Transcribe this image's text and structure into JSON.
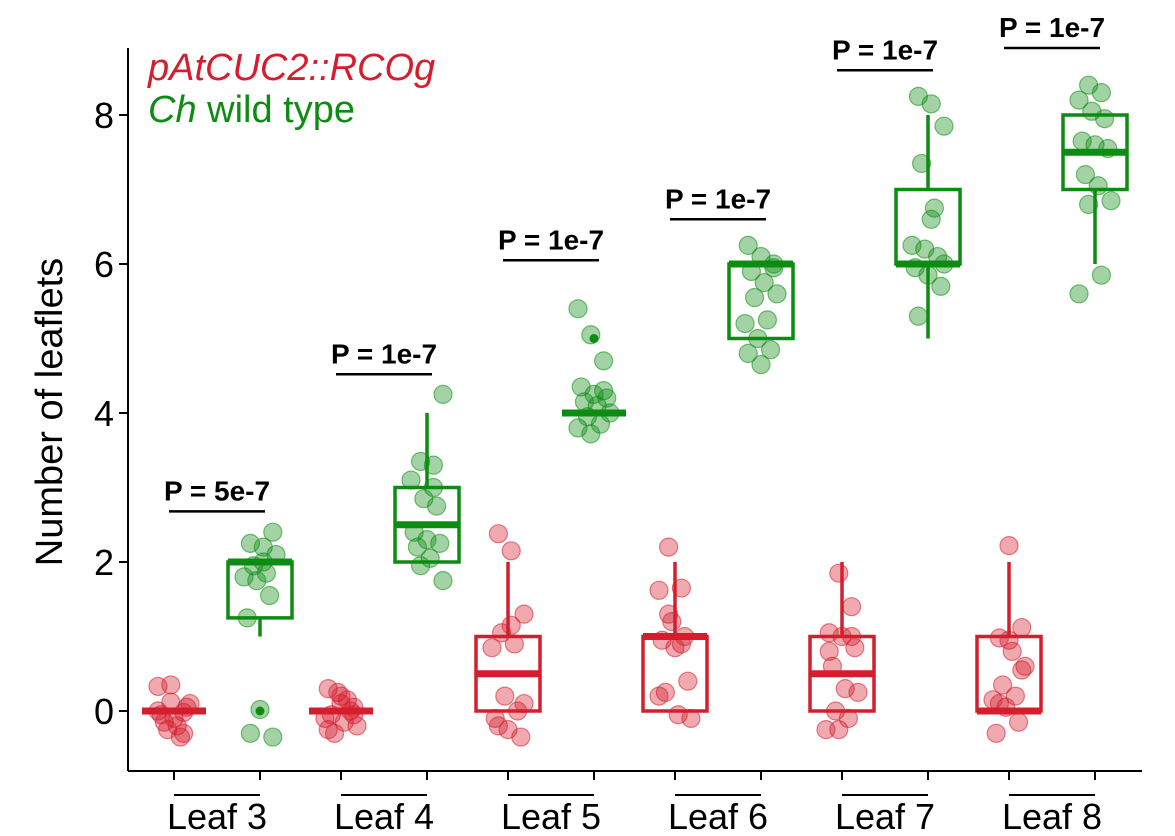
{
  "chart_data": {
    "type": "box",
    "ylabel": "Number of leaflets",
    "xlabel": "",
    "ylim": [
      -0.8,
      8.8
    ],
    "yticks": [
      0,
      2,
      4,
      6,
      8
    ],
    "grid": false,
    "legend_placement": "top-left",
    "legend": [
      {
        "key": "rco",
        "name": "pAtCUC2::RCOg",
        "italic_name": "pAtCUC2::RCOg",
        "plain_name": "",
        "color": "#d41e2d"
      },
      {
        "key": "wt",
        "name": "Ch wild type",
        "italic_name": "Ch",
        "plain_name": " wild type",
        "color": "#0d8c12"
      }
    ],
    "categories": [
      "Leaf 3",
      "Leaf 4",
      "Leaf 5",
      "Leaf 6",
      "Leaf 7",
      "Leaf 8"
    ],
    "series": [
      {
        "key": "rco",
        "color": "#d41e2d",
        "boxes": [
          {
            "min": 0,
            "q1": 0,
            "median": 0,
            "q3": 0,
            "max": 0,
            "outliers": []
          },
          {
            "min": 0,
            "q1": 0,
            "median": 0,
            "q3": 0,
            "max": 0,
            "outliers": []
          },
          {
            "min": 0,
            "q1": 0,
            "median": 0.5,
            "q3": 1,
            "max": 2,
            "outliers": []
          },
          {
            "min": 0,
            "q1": 0,
            "median": 1,
            "q3": 1,
            "max": 2,
            "outliers": []
          },
          {
            "min": 0,
            "q1": 0,
            "median": 0.5,
            "q3": 1,
            "max": 2,
            "outliers": []
          },
          {
            "min": 0,
            "q1": 0,
            "median": 0,
            "q3": 1,
            "max": 2,
            "outliers": []
          }
        ],
        "points": [
          [
            0.33,
            0.35,
            -0.02,
            -0.05,
            -0.1,
            0.05,
            -0.15,
            -0.2,
            0.1,
            -0.25,
            -0.35,
            0.0,
            0.12,
            -0.3
          ],
          [
            0.3,
            0.2,
            0.05,
            -0.05,
            -0.15,
            -0.2,
            -0.3,
            0.15,
            -0.1,
            0.25,
            0.0,
            -0.25,
            0.1,
            -0.05
          ],
          [
            2.38,
            2.15,
            1.3,
            1.05,
            0.9,
            0.85,
            0.2,
            0.0,
            -0.1,
            -0.25,
            -0.35,
            -0.2,
            1.15,
            0.1
          ],
          [
            2.2,
            1.65,
            1.62,
            1.2,
            1.0,
            0.95,
            0.85,
            0.4,
            0.25,
            -0.05,
            -0.1,
            1.3,
            0.9,
            0.2
          ],
          [
            1.85,
            1.4,
            1.05,
            1.0,
            0.85,
            0.6,
            0.3,
            0.25,
            0.0,
            -0.1,
            -0.25,
            -0.25,
            1.0,
            0.8
          ],
          [
            2.22,
            1.12,
            0.98,
            0.8,
            0.6,
            0.35,
            0.2,
            0.15,
            0.05,
            -0.15,
            -0.3,
            0.95,
            0.55,
            0.1
          ]
        ]
      },
      {
        "key": "wt",
        "color": "#0d8c12",
        "boxes": [
          {
            "min": 1.0,
            "q1": 1.25,
            "median": 2,
            "q3": 2,
            "max": 2,
            "outliers": [
              0
            ]
          },
          {
            "min": 2,
            "q1": 2,
            "median": 2.5,
            "q3": 3,
            "max": 4,
            "outliers": []
          },
          {
            "min": 4,
            "q1": 4,
            "median": 4,
            "q3": 4,
            "max": 4,
            "outliers": [
              5
            ]
          },
          {
            "min": 5,
            "q1": 5,
            "median": 6,
            "q3": 6,
            "max": 6,
            "outliers": []
          },
          {
            "min": 5,
            "q1": 6,
            "median": 6,
            "q3": 7,
            "max": 8,
            "outliers": []
          },
          {
            "min": 6,
            "q1": 7,
            "median": 7.5,
            "q3": 8,
            "max": 8,
            "outliers": []
          }
        ],
        "points": [
          [
            2.4,
            2.25,
            2.2,
            2.1,
            1.95,
            1.85,
            1.8,
            1.75,
            1.55,
            1.25,
            0.02,
            -0.35,
            -0.3,
            2.0
          ],
          [
            4.25,
            3.35,
            3.3,
            3.1,
            2.85,
            2.75,
            2.4,
            2.3,
            2.25,
            2.2,
            2.05,
            1.75,
            1.95,
            3.0
          ],
          [
            5.4,
            5.05,
            4.7,
            4.35,
            4.25,
            4.2,
            4.15,
            4.1,
            4.0,
            3.95,
            3.85,
            3.8,
            3.72,
            4.3
          ],
          [
            6.25,
            6.1,
            6.0,
            5.9,
            5.75,
            5.6,
            5.55,
            5.25,
            5.2,
            5.0,
            4.85,
            4.8,
            4.65,
            5.95
          ],
          [
            8.25,
            8.15,
            7.85,
            7.35,
            6.75,
            6.25,
            6.2,
            6.1,
            5.95,
            5.85,
            5.7,
            5.3,
            6.6,
            6.0
          ],
          [
            8.4,
            8.3,
            8.2,
            8.05,
            7.95,
            7.65,
            7.6,
            7.55,
            7.2,
            7.05,
            6.85,
            6.8,
            5.85,
            5.6
          ]
        ]
      }
    ],
    "annotations": [
      {
        "text": "P = 5e-7",
        "category": 0,
        "y": 2.68
      },
      {
        "text": "P = 1e-7",
        "category": 1,
        "y": 4.52
      },
      {
        "text": "P = 1e-7",
        "category": 2,
        "y": 6.05
      },
      {
        "text": "P = 1e-7",
        "category": 3,
        "y": 6.6
      },
      {
        "text": "P = 1e-7",
        "category": 4,
        "y": 8.6
      },
      {
        "text": "P = 1e-7",
        "category": 5,
        "y": 8.9
      }
    ]
  }
}
